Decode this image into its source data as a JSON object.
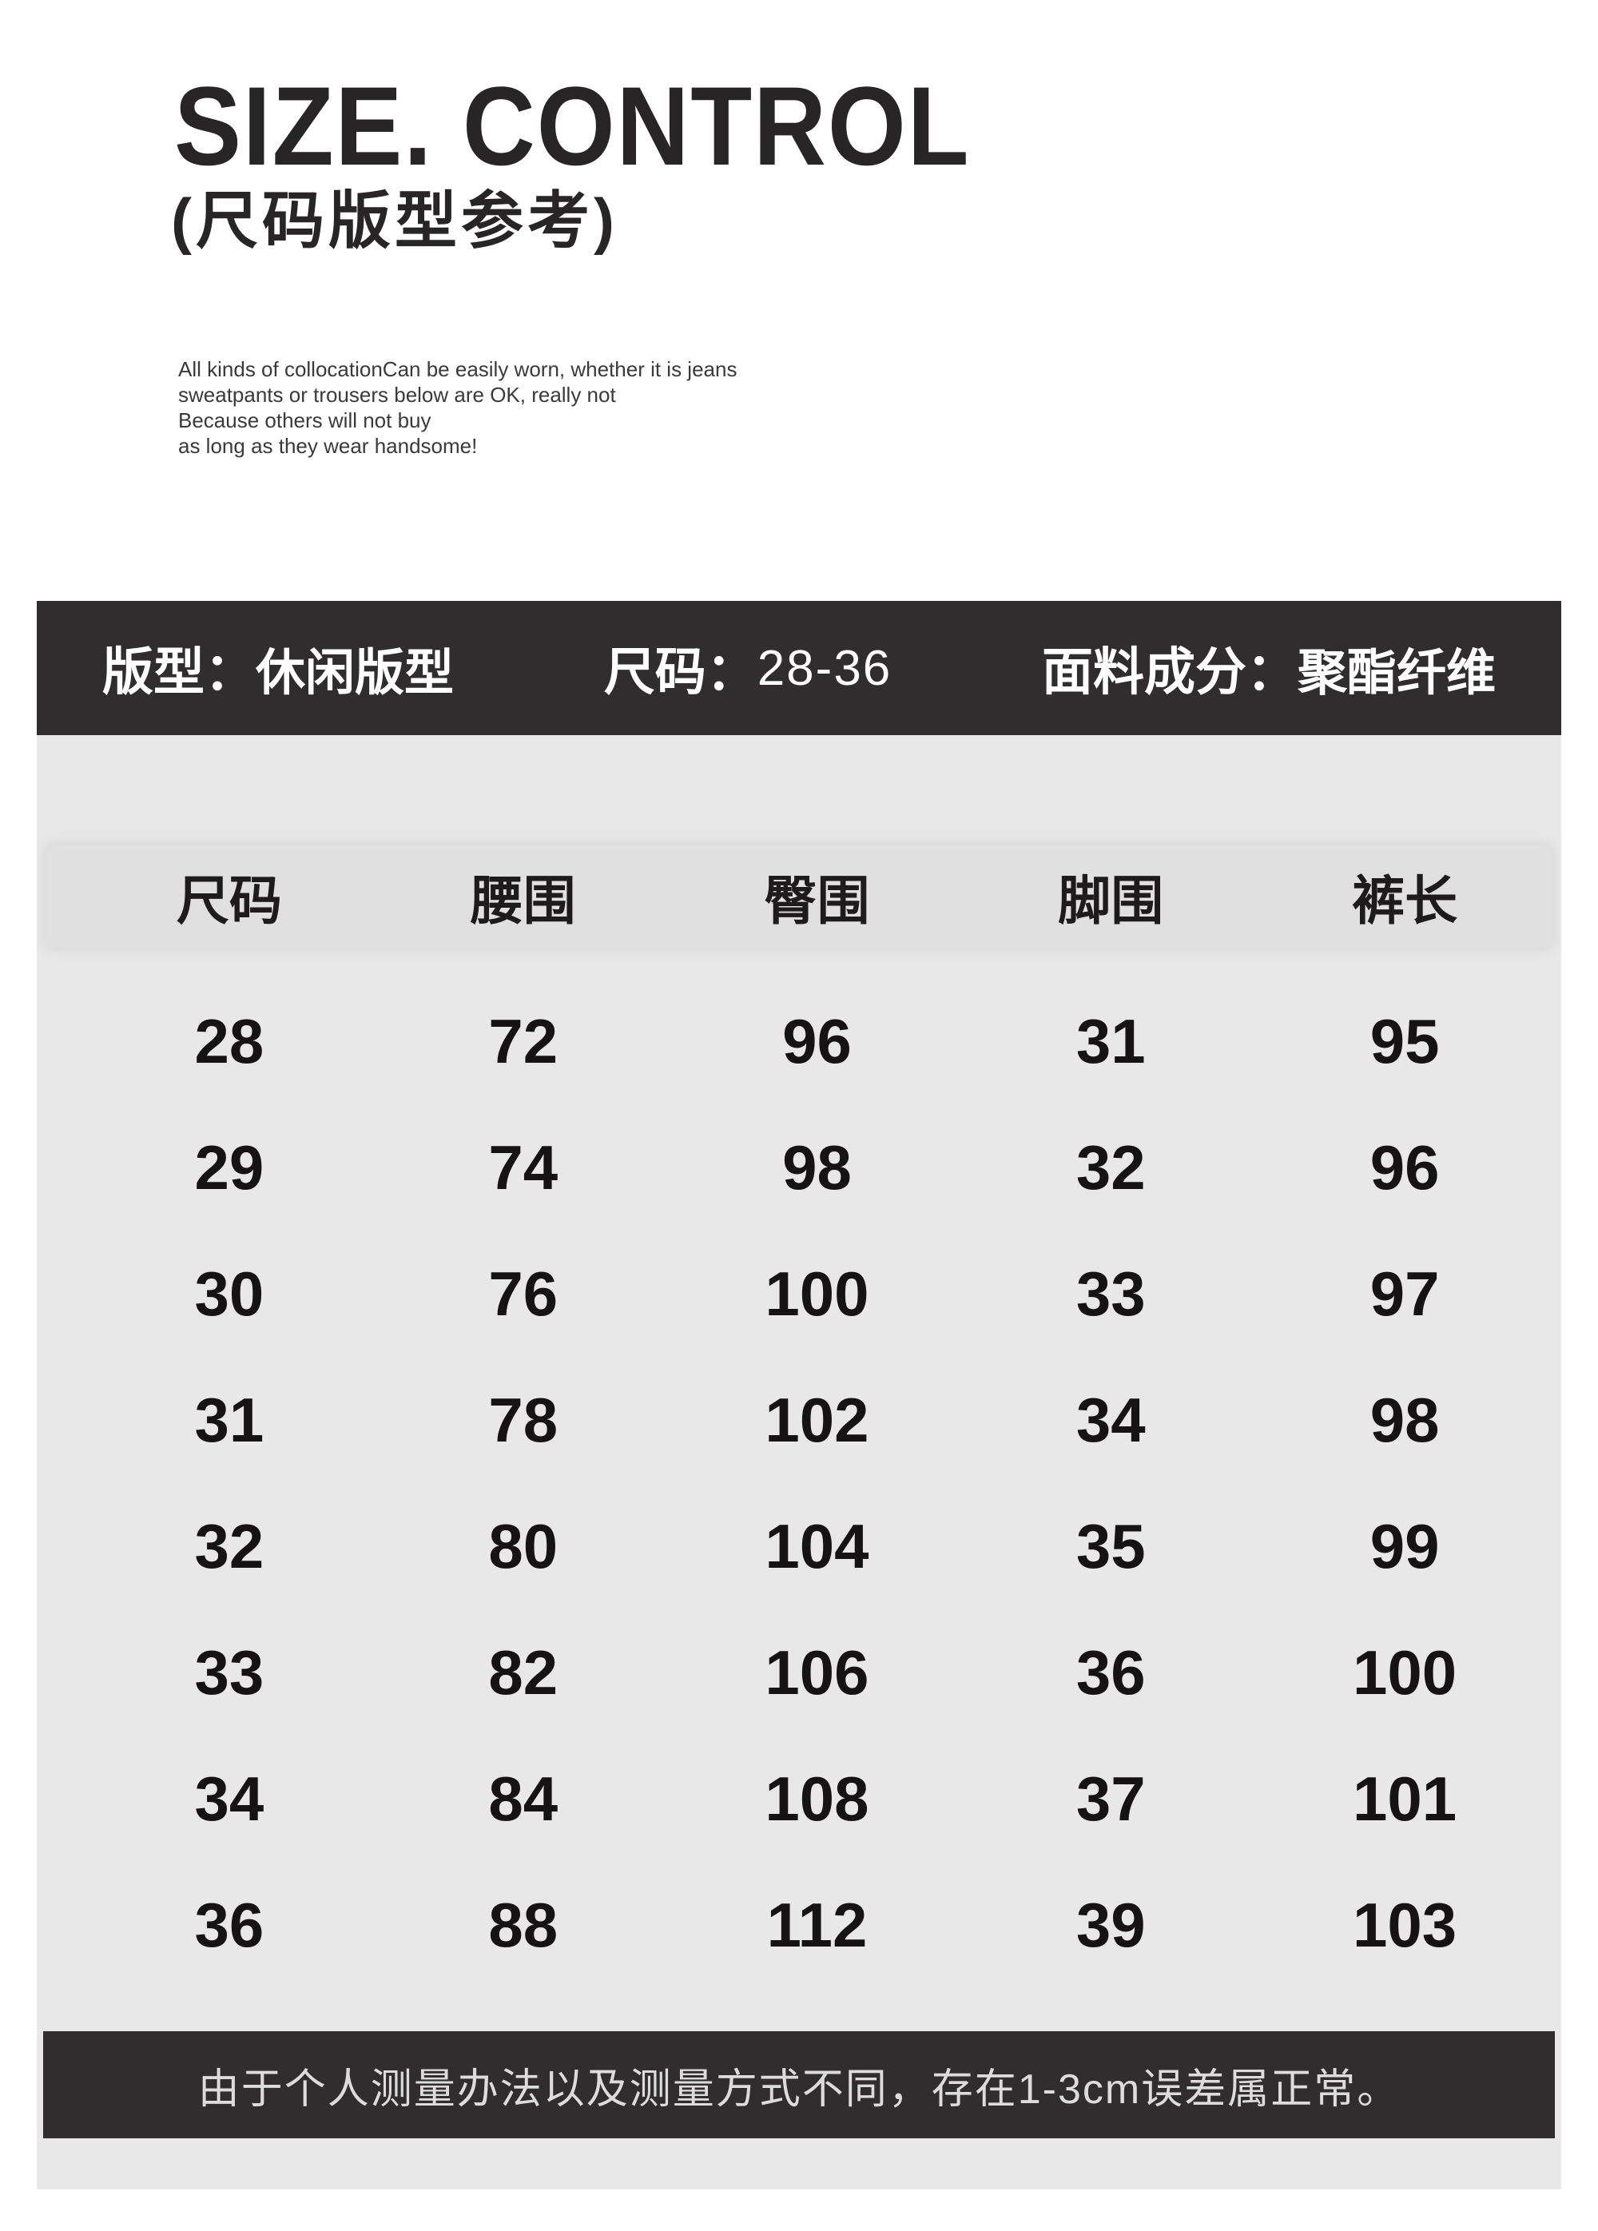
{
  "header": {
    "title": "SIZE. CONTROL",
    "subtitle": "(尺码版型参考)"
  },
  "description": {
    "lines": [
      "All kinds of collocationCan be easily worn, whether it is jeans",
      "sweatpants or trousers below are OK, really not",
      "Because others will not buy",
      "as long as they wear handsome!"
    ]
  },
  "info_bar": {
    "items": [
      {
        "label": "版型：",
        "value": "休闲版型"
      },
      {
        "label": "尺码：",
        "value": "28-36"
      },
      {
        "label": "面料成分：",
        "value": "聚酯纤维"
      }
    ]
  },
  "size_table": {
    "headers": [
      "尺码",
      "腰围",
      "臀围",
      "脚围",
      "裤长"
    ],
    "rows": [
      [
        "28",
        "72",
        "96",
        "31",
        "95"
      ],
      [
        "29",
        "74",
        "98",
        "32",
        "96"
      ],
      [
        "30",
        "76",
        "100",
        "33",
        "97"
      ],
      [
        "31",
        "78",
        "102",
        "34",
        "98"
      ],
      [
        "32",
        "80",
        "104",
        "35",
        "99"
      ],
      [
        "33",
        "82",
        "106",
        "36",
        "100"
      ],
      [
        "34",
        "84",
        "108",
        "37",
        "101"
      ],
      [
        "36",
        "88",
        "112",
        "39",
        "103"
      ]
    ]
  },
  "disclaimer": "由于个人测量办法以及测量方式不同，存在1-3cm误差属正常。",
  "colors": {
    "bar_background": "#2f2d2e",
    "panel_background": "#e9e8e8",
    "header_band_background": "#e1e0e0",
    "text_primary": "#1c1a1b",
    "bar_text": "#ffffff",
    "disclaimer_text": "#dcdcdc"
  }
}
